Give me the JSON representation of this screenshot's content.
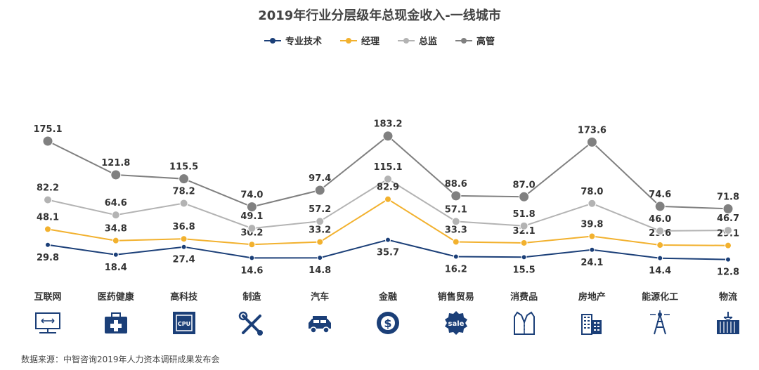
{
  "chart_data": {
    "type": "line",
    "title": "2019年行业分层级年总现金收入-一线城市",
    "categories": [
      "互联网",
      "医药健康",
      "高科技",
      "制造",
      "汽车",
      "金融",
      "销售贸易",
      "消费品",
      "房地产",
      "能源化工",
      "物流"
    ],
    "series": [
      {
        "name": "专业技术",
        "color": "#1b3f78",
        "values": [
          29.8,
          18.4,
          27.4,
          14.6,
          14.8,
          35.7,
          16.2,
          15.5,
          24.1,
          14.4,
          12.8
        ]
      },
      {
        "name": "经理",
        "color": "#f2b12e",
        "values": [
          48.1,
          34.8,
          36.8,
          30.2,
          33.2,
          82.9,
          33.3,
          32.1,
          39.8,
          29.6,
          29.1
        ]
      },
      {
        "name": "总监",
        "color": "#b3b3b3",
        "values": [
          82.2,
          64.6,
          78.2,
          49.1,
          57.2,
          115.1,
          57.1,
          51.8,
          78.0,
          46.0,
          46.7
        ]
      },
      {
        "name": "高管",
        "color": "#808080",
        "values": [
          175.1,
          121.8,
          115.5,
          74.0,
          97.4,
          183.2,
          88.6,
          87.0,
          173.6,
          74.6,
          71.8
        ]
      }
    ],
    "xlabel": "",
    "ylabel": "",
    "grid": false,
    "legend_position": "top-center"
  },
  "icons": [
    "computer-network-icon",
    "first-aid-kit-icon",
    "cpu-chip-icon",
    "tools-icon",
    "car-icon",
    "dollar-coin-icon",
    "sale-tag-icon",
    "suit-vest-icon",
    "buildings-icon",
    "oil-derrick-icon",
    "cargo-container-icon"
  ],
  "footer": {
    "source": "数据来源：中智咨询2019年人力资本调研成果发布会"
  },
  "colors": {
    "icon_blue": "#1b3f78"
  }
}
